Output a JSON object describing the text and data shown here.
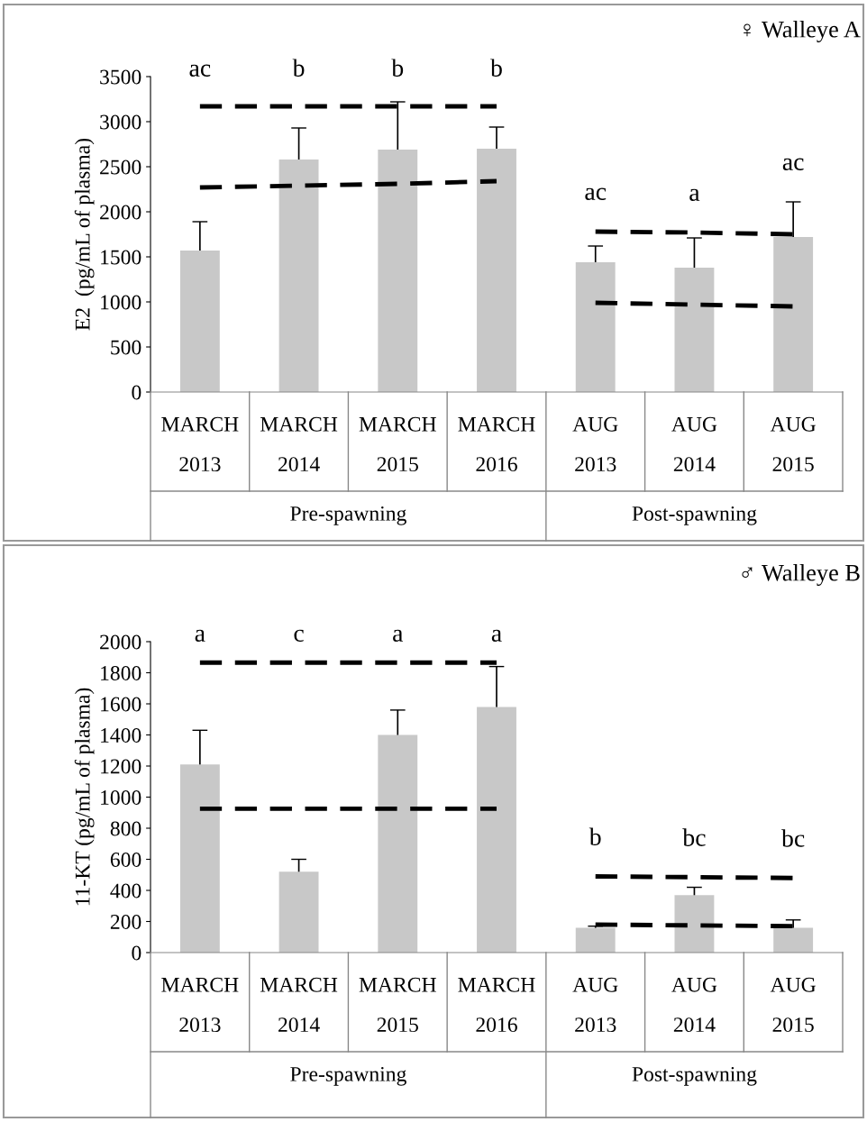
{
  "chart_data": [
    {
      "type": "bar",
      "title": "♀ Walleye A",
      "ylabel": "E2  (pg/mL of plasma)",
      "categories": [
        "MARCH\n2013",
        "MARCH\n2014",
        "MARCH\n2015",
        "MARCH\n2016",
        "AUG\n2013",
        "AUG\n2014",
        "AUG\n2015"
      ],
      "ylim": [
        0,
        3500
      ],
      "yticks": [
        0,
        500,
        1000,
        1500,
        2000,
        2500,
        3000,
        3500
      ],
      "grid": false,
      "legend": false,
      "line_style": "dashed",
      "series": [
        {
          "color": "#c8c8c8",
          "values": [
            1570,
            2580,
            2690,
            2700,
            1440,
            1380,
            1720
          ],
          "errors": [
            320,
            350,
            530,
            240,
            180,
            330,
            390
          ]
        },
        {
          "type": "line",
          "color": "#000000",
          "values": [
            3170,
            3170,
            3170,
            3170,
            null,
            null,
            null
          ]
        },
        {
          "type": "line",
          "color": "#000000",
          "values": [
            2270,
            2290,
            2310,
            2340,
            null,
            null,
            null
          ]
        },
        {
          "type": "line",
          "color": "#000000",
          "values": [
            null,
            null,
            null,
            null,
            1780,
            1770,
            1750
          ]
        },
        {
          "type": "line",
          "color": "#000000",
          "values": [
            null,
            null,
            null,
            null,
            990,
            970,
            950
          ]
        }
      ],
      "annotations": [
        "ac",
        "b",
        "b",
        "b",
        "ac",
        "a",
        "ac",
        "Pre-spawning",
        "Post-spawning"
      ]
    },
    {
      "type": "bar",
      "title": "♂ Walleye B",
      "ylabel": "11-KT (pg/mL of plasma)",
      "categories": [
        "MARCH\n2013",
        "MARCH\n2014",
        "MARCH\n2015",
        "MARCH\n2016",
        "AUG\n2013",
        "AUG\n2014",
        "AUG\n2015"
      ],
      "ylim": [
        0,
        2000
      ],
      "yticks": [
        0,
        200,
        400,
        600,
        800,
        1000,
        1200,
        1400,
        1600,
        1800,
        2000
      ],
      "grid": false,
      "legend": false,
      "line_style": "dashed",
      "series": [
        {
          "color": "#c8c8c8",
          "values": [
            1210,
            520,
            1400,
            1580,
            160,
            370,
            160
          ],
          "errors": [
            220,
            80,
            160,
            260,
            10,
            50,
            50
          ]
        },
        {
          "type": "line",
          "color": "#000000",
          "values": [
            1865,
            1865,
            1865,
            1865,
            null,
            null,
            null
          ]
        },
        {
          "type": "line",
          "color": "#000000",
          "values": [
            925,
            925,
            925,
            925,
            null,
            null,
            null
          ]
        },
        {
          "type": "line",
          "color": "#000000",
          "values": [
            null,
            null,
            null,
            null,
            490,
            485,
            480
          ]
        },
        {
          "type": "line",
          "color": "#000000",
          "values": [
            null,
            null,
            null,
            null,
            180,
            175,
            170
          ]
        }
      ],
      "annotations": [
        "a",
        "c",
        "a",
        "a",
        "b",
        "bc",
        "bc",
        "Pre-spawning",
        "Post-spawning"
      ]
    }
  ]
}
